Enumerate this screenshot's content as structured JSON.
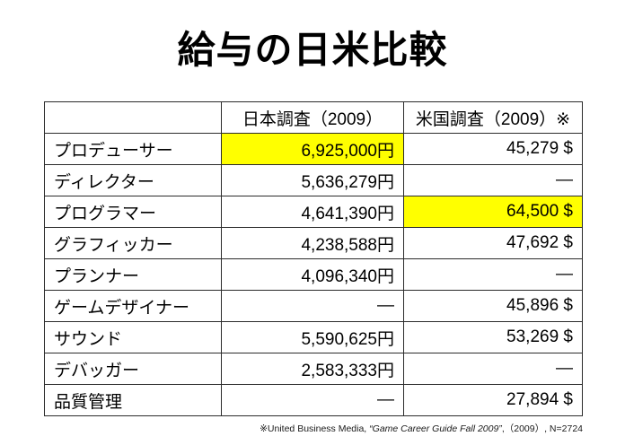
{
  "page": {
    "background": "#ffffff"
  },
  "title": "給与の日米比較",
  "table": {
    "headers": [
      "",
      "日本調査（2009）",
      "米国調査（2009）※"
    ],
    "highlight_color": "#ffff00",
    "rows": [
      {
        "label": "プロデューサー",
        "japan": "6,925,000円",
        "us": "45,279 $",
        "japan_highlight": true,
        "us_highlight": false
      },
      {
        "label": "ディレクター",
        "japan": "5,636,279円",
        "us": "—",
        "japan_highlight": false,
        "us_highlight": false
      },
      {
        "label": "プログラマー",
        "japan": "4,641,390円",
        "us": "64,500 $",
        "japan_highlight": false,
        "us_highlight": true
      },
      {
        "label": "グラフィッカー",
        "japan": "4,238,588円",
        "us": "47,692 $",
        "japan_highlight": false,
        "us_highlight": false
      },
      {
        "label": "プランナー",
        "japan": "4,096,340円",
        "us": "—",
        "japan_highlight": false,
        "us_highlight": false
      },
      {
        "label": "ゲームデザイナー",
        "japan": "—",
        "us": "45,896 $",
        "japan_highlight": false,
        "us_highlight": false
      },
      {
        "label": "サウンド",
        "japan": "5,590,625円",
        "us": "53,269 $",
        "japan_highlight": false,
        "us_highlight": false
      },
      {
        "label": "デバッガー",
        "japan": "2,583,333円",
        "us": "—",
        "japan_highlight": false,
        "us_highlight": false
      },
      {
        "label": "品質管理",
        "japan": "—",
        "us": "27,894 $",
        "japan_highlight": false,
        "us_highlight": false
      }
    ]
  },
  "footnote": {
    "prefix": "※United Business Media, ",
    "source_italic": "“Game Career Guide Fall 2009”",
    "suffix": ",（2009）, N=2724"
  }
}
